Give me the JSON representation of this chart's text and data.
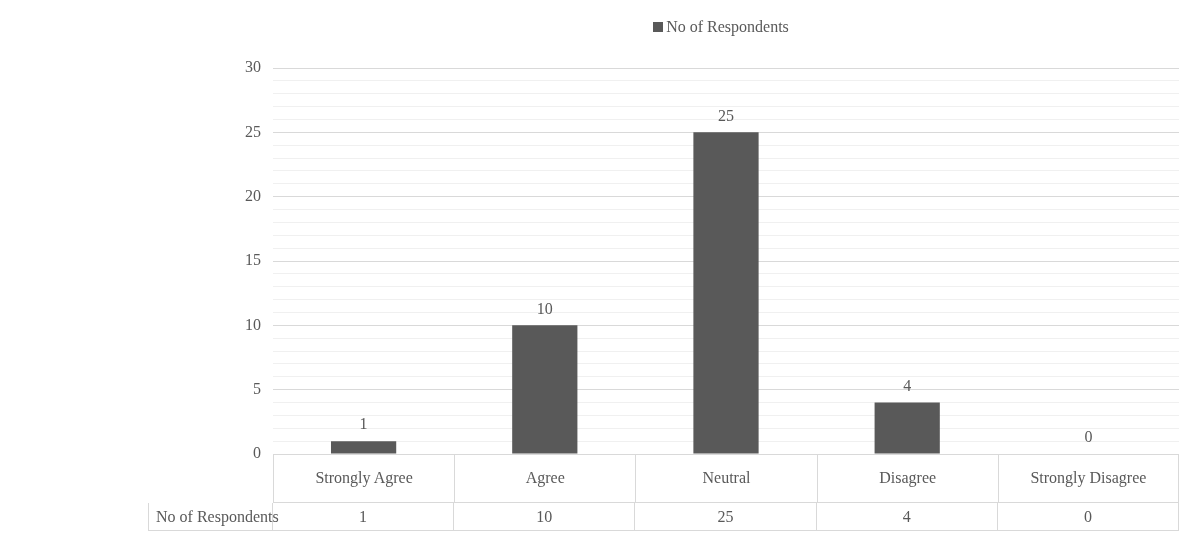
{
  "chart_data": {
    "type": "bar",
    "categories": [
      "Strongly Agree",
      "Agree",
      "Neutral",
      "Disagree",
      "Strongly Disagree"
    ],
    "series": [
      {
        "name": "No of Respondents",
        "color": "#595959",
        "values": [
          1,
          10,
          25,
          4,
          0
        ]
      }
    ],
    "ylim": [
      0,
      30
    ],
    "yticks": [
      0,
      {
        "value": 1,
        "label": null
      },
      {
        "value": 2,
        "label": null
      },
      {
        "value": 3,
        "label": null
      },
      {
        "value": 4,
        "label": null
      },
      5,
      {
        "value": 6,
        "label": null
      },
      {
        "value": 7,
        "label": null
      },
      {
        "value": 8,
        "label": null
      },
      {
        "value": 9,
        "label": null
      },
      10,
      {
        "value": 11,
        "label": null
      },
      {
        "value": 12,
        "label": null
      },
      {
        "value": 13,
        "label": null
      },
      {
        "value": 14,
        "label": null
      },
      15,
      {
        "value": 16,
        "label": null
      },
      {
        "value": 17,
        "label": null
      },
      {
        "value": 18,
        "label": null
      },
      {
        "value": 19,
        "label": null
      },
      20,
      {
        "value": 21,
        "label": null
      },
      {
        "value": 22,
        "label": null
      },
      {
        "value": 23,
        "label": null
      },
      {
        "value": 24,
        "label": null
      },
      25,
      {
        "value": 26,
        "label": null
      },
      {
        "value": 27,
        "label": null
      },
      {
        "value": 28,
        "label": null
      },
      {
        "value": 29,
        "label": null
      },
      30
    ],
    "annotations": [
      "1",
      "10",
      "25",
      "4",
      "0"
    ],
    "grid": true,
    "legend": "top",
    "data_labels": true
  }
}
